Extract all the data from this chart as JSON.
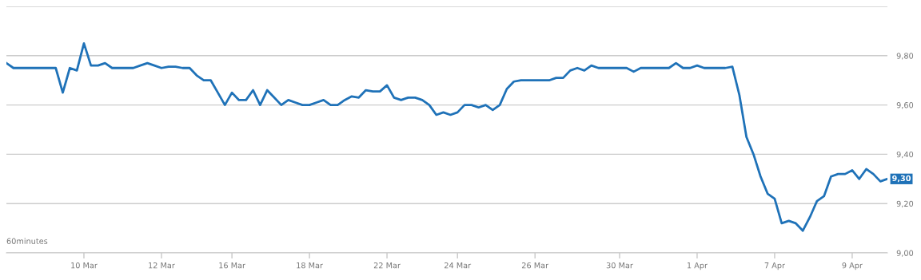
{
  "chart_data": {
    "type": "line",
    "categories": [
      null,
      null,
      null,
      null,
      null,
      null,
      null,
      null,
      null,
      null,
      null,
      "10 Mar",
      null,
      null,
      null,
      null,
      null,
      null,
      null,
      null,
      null,
      null,
      "12 Mar",
      null,
      null,
      null,
      null,
      null,
      null,
      null,
      null,
      null,
      "16 Mar",
      null,
      null,
      null,
      null,
      null,
      null,
      null,
      null,
      null,
      null,
      "18 Mar",
      null,
      null,
      null,
      null,
      null,
      null,
      null,
      null,
      null,
      null,
      "22 Mar",
      null,
      null,
      null,
      null,
      null,
      null,
      null,
      null,
      null,
      "24 Mar",
      null,
      null,
      null,
      null,
      null,
      null,
      null,
      null,
      null,
      null,
      "26 Mar",
      null,
      null,
      null,
      null,
      null,
      null,
      null,
      null,
      null,
      null,
      null,
      "30 Mar",
      null,
      null,
      null,
      null,
      null,
      null,
      null,
      null,
      null,
      null,
      "1 Apr",
      null,
      null,
      null,
      null,
      null,
      null,
      null,
      null,
      null,
      null,
      "7 Apr",
      null,
      null,
      null,
      null,
      null,
      null,
      null,
      null,
      null,
      null,
      "9 Apr",
      null,
      null,
      null,
      null,
      null
    ],
    "values": [
      9.77,
      9.75,
      9.75,
      9.75,
      9.75,
      9.75,
      9.75,
      9.75,
      9.65,
      9.75,
      9.74,
      9.85,
      9.76,
      9.76,
      9.77,
      9.75,
      9.75,
      9.75,
      9.75,
      9.76,
      9.77,
      9.76,
      9.75,
      9.755,
      9.755,
      9.75,
      9.75,
      9.72,
      9.7,
      9.7,
      9.65,
      9.6,
      9.65,
      9.62,
      9.62,
      9.66,
      9.6,
      9.66,
      9.63,
      9.6,
      9.62,
      9.61,
      9.6,
      9.6,
      9.61,
      9.62,
      9.6,
      9.6,
      9.62,
      9.635,
      9.63,
      9.66,
      9.655,
      9.655,
      9.68,
      9.63,
      9.62,
      9.63,
      9.63,
      9.62,
      9.6,
      9.56,
      9.57,
      9.56,
      9.57,
      9.6,
      9.6,
      9.59,
      9.6,
      9.58,
      9.6,
      9.665,
      9.695,
      9.7,
      9.7,
      9.7,
      9.7,
      9.7,
      9.71,
      9.71,
      9.74,
      9.75,
      9.74,
      9.76,
      9.75,
      9.75,
      9.75,
      9.75,
      9.75,
      9.735,
      9.75,
      9.75,
      9.75,
      9.75,
      9.75,
      9.77,
      9.75,
      9.75,
      9.76,
      9.75,
      9.75,
      9.75,
      9.75,
      9.755,
      9.64,
      9.47,
      9.4,
      9.31,
      9.24,
      9.22,
      9.12,
      9.13,
      9.12,
      9.09,
      9.145,
      9.21,
      9.23,
      9.31,
      9.32,
      9.32,
      9.335,
      9.3,
      9.34,
      9.32,
      9.29,
      9.3
    ],
    "color": "#1f72b8",
    "ylim": [
      9.0,
      10.0
    ],
    "yticks": [
      {
        "value": 9.0,
        "label": "9,00"
      },
      {
        "value": 9.2,
        "label": "9,20"
      },
      {
        "value": 9.4,
        "label": "9,40"
      },
      {
        "value": 9.6,
        "label": "9,60"
      },
      {
        "value": 9.8,
        "label": "9,80"
      },
      {
        "value": 10.0,
        "label": null
      }
    ],
    "grid": "y",
    "marker": "none",
    "line_style": "solid",
    "annotations": [
      "60minutes",
      "9,30"
    ]
  }
}
